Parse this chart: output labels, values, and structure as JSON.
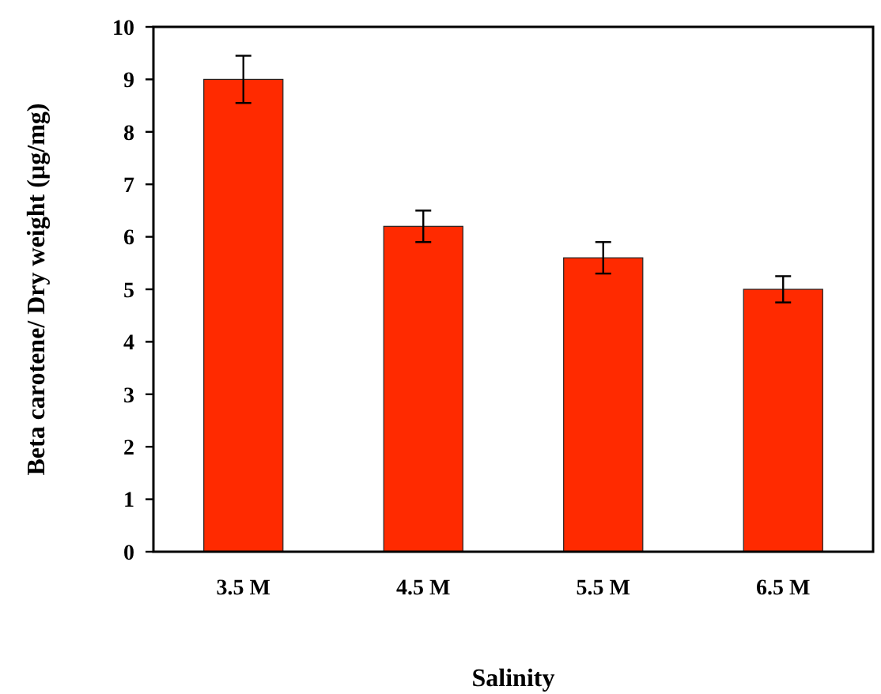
{
  "chart_data": {
    "type": "bar",
    "xlabel": "Salinity",
    "ylabel": "Beta carotene/ Dry weight (µg/mg)",
    "categories": [
      "3.5 M",
      "4.5 M",
      "5.5 M",
      "6.5 M"
    ],
    "values": [
      9.0,
      6.2,
      5.6,
      5.0
    ],
    "errors": [
      0.45,
      0.3,
      0.3,
      0.25
    ],
    "color": "#ff2a00",
    "ylim": [
      0,
      10
    ],
    "yticks": [
      0,
      1,
      2,
      3,
      4,
      5,
      6,
      7,
      8,
      9,
      10
    ],
    "grid": false
  }
}
